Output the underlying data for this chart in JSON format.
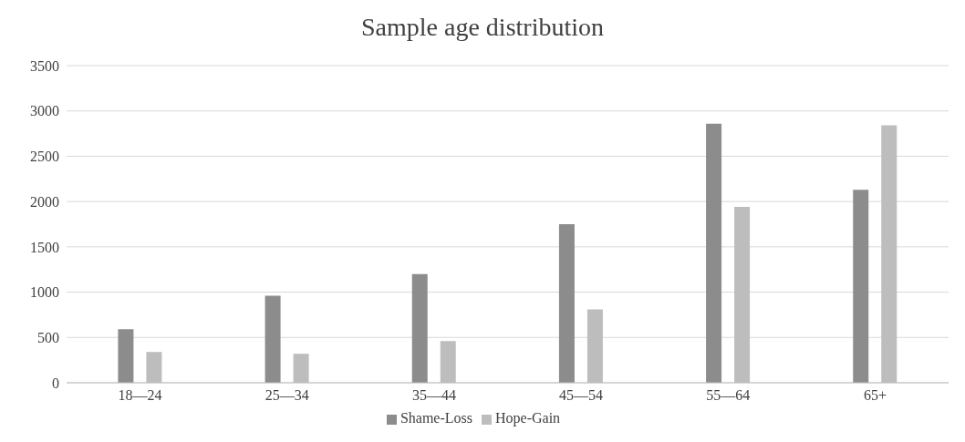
{
  "chart_data": {
    "type": "bar",
    "title": "Sample age distribution",
    "categories": [
      "18—24",
      "25—34",
      "35—44",
      "45—54",
      "55—64",
      "65+"
    ],
    "series": [
      {
        "name": "Shame-Loss",
        "color": "#8c8c8c",
        "values": [
          590,
          960,
          1200,
          1750,
          2860,
          2130
        ]
      },
      {
        "name": "Hope-Gain",
        "color": "#bdbdbd",
        "values": [
          340,
          320,
          460,
          810,
          1940,
          2840
        ]
      }
    ],
    "ylim": [
      0,
      3500
    ],
    "yticks": [
      0,
      500,
      1000,
      1500,
      2000,
      2500,
      3000,
      3500
    ],
    "grid": "y",
    "legend": "bottom"
  }
}
